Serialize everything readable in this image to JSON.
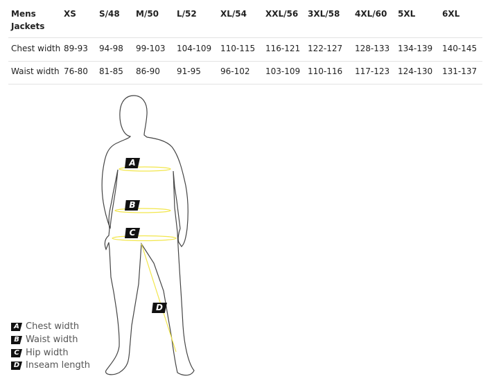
{
  "table": {
    "header": [
      "Mens Jackets",
      "XS",
      "S/48",
      "M/50",
      "L/52",
      "XL/54",
      "XXL/56",
      "3XL/58",
      "4XL/60",
      "5XL",
      "6XL"
    ],
    "rows": [
      {
        "label": "Chest width",
        "values": [
          "89-93",
          "94-98",
          "99-103",
          "104-109",
          "110-115",
          "116-121",
          "122-127",
          "128-133",
          "134-139",
          "140-145"
        ]
      },
      {
        "label": "Waist width",
        "values": [
          "76-80",
          "81-85",
          "86-90",
          "91-95",
          "96-102",
          "103-109",
          "110-116",
          "117-123",
          "124-130",
          "131-137"
        ]
      }
    ]
  },
  "figure": {
    "markers": [
      "A",
      "B",
      "C",
      "D"
    ],
    "accent": "#f2e64b"
  },
  "legend": [
    {
      "key": "A",
      "label": "Chest width"
    },
    {
      "key": "B",
      "label": "Waist width"
    },
    {
      "key": "C",
      "label": "Hip width"
    },
    {
      "key": "D",
      "label": "Inseam length"
    }
  ]
}
